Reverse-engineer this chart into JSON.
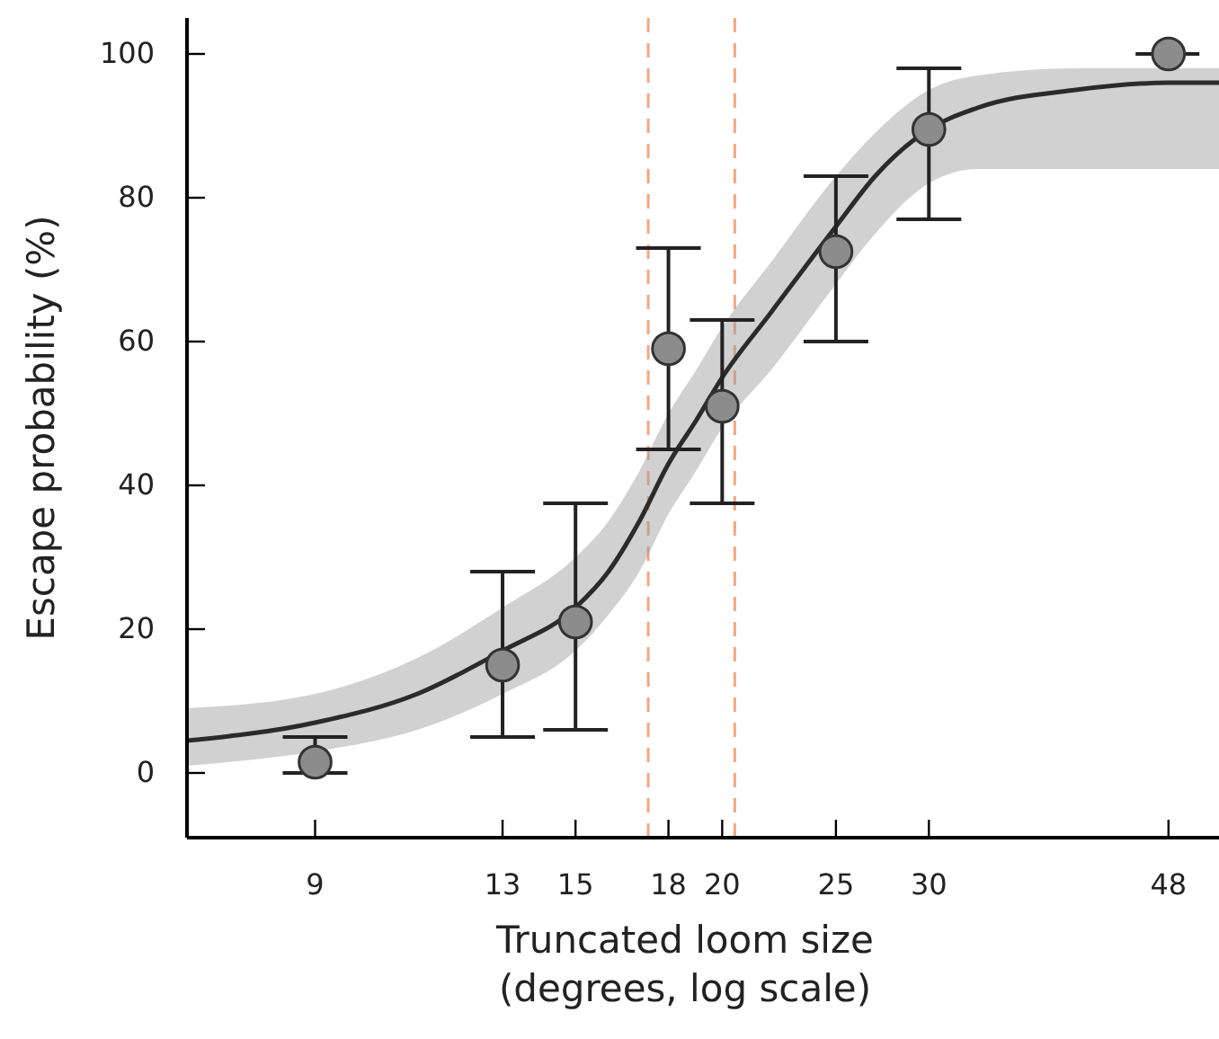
{
  "chart_data": {
    "type": "scatter",
    "xlabel": "Truncated loom size\n(degrees, log scale)",
    "ylabel": "Escape probability (%)",
    "log": "x",
    "xlim": [
      7,
      53
    ],
    "xticks": [
      9,
      13,
      15,
      18,
      20,
      25,
      30,
      48
    ],
    "ylim": [
      -9,
      105
    ],
    "yticks": [
      0,
      20,
      40,
      60,
      80,
      100
    ],
    "grid": false,
    "series": [
      {
        "type": "line",
        "color": "#2b2b2b",
        "line_style": "solid",
        "x": [
          7,
          9,
          11,
          13,
          15,
          16,
          17,
          18,
          19,
          20,
          22,
          25,
          27,
          30,
          33,
          40,
          48,
          53
        ],
        "values": [
          4.5,
          7,
          11,
          17,
          23,
          28,
          35,
          43,
          49,
          55,
          64,
          76,
          83,
          89.5,
          92.5,
          95,
          96,
          96
        ],
        "lower": [
          1,
          3,
          6,
          11,
          17,
          22,
          28,
          36,
          42,
          48,
          56,
          68,
          75,
          82,
          84,
          84,
          84,
          84
        ],
        "upper": [
          9,
          11,
          16,
          23,
          30,
          35,
          42,
          50,
          56,
          62,
          71,
          83,
          89,
          95,
          97,
          98,
          98,
          98
        ]
      },
      {
        "color": "#8c8c8c",
        "marker": "circle",
        "x": [
          9,
          13,
          15,
          18,
          20,
          25,
          30,
          48
        ],
        "values": [
          1.5,
          15,
          21,
          59,
          51,
          72.5,
          89.5,
          100
        ],
        "errors": [
          [
            0,
            5
          ],
          [
            5,
            28
          ],
          [
            6,
            37.5
          ],
          [
            45,
            73
          ],
          [
            37.5,
            63
          ],
          [
            60,
            83
          ],
          [
            77,
            98
          ],
          null
        ],
        "xerrors": [
          null,
          null,
          null,
          null,
          null,
          null,
          null,
          [
            45,
            51
          ]
        ]
      }
    ],
    "ref_lines": [
      {
        "axis": "x",
        "value": 17.3,
        "label": null,
        "color": "#f4a582",
        "line_style": "dashed"
      },
      {
        "axis": "x",
        "value": 20.5,
        "label": null,
        "color": "#f4a582",
        "line_style": "dashed"
      }
    ]
  }
}
